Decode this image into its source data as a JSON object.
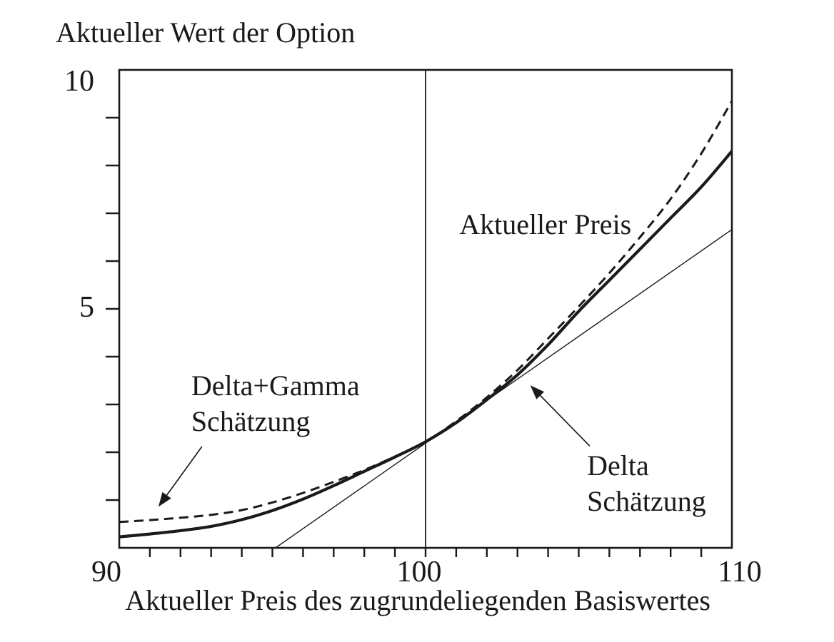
{
  "chart_data": {
    "type": "line",
    "title": "Aktueller Wert der Option",
    "xlabel": "Aktueller Preis des zugrundeliegenden Basiswertes",
    "ylabel": "Aktueller Wert der Option",
    "xlim": [
      90,
      110
    ],
    "ylim": [
      0,
      10
    ],
    "x_tick_labels": [
      "90",
      "100",
      "110"
    ],
    "x_tick_values": [
      90,
      100,
      110
    ],
    "y_tick_labels": [
      "10",
      "5"
    ],
    "y_tick_values": [
      10,
      5
    ],
    "x_minor_tick_step": 1,
    "y_minor_tick_step": 1,
    "grid": false,
    "legend": "none (inline annotations)",
    "reference_line_x": 100,
    "axis_color": "#1a1a1a",
    "background_color": "#ffffff",
    "series": [
      {
        "name": "Aktueller Preis",
        "style": "thick-solid",
        "points": [
          [
            90,
            0.23
          ],
          [
            91,
            0.29
          ],
          [
            92,
            0.36
          ],
          [
            93,
            0.45
          ],
          [
            94,
            0.59
          ],
          [
            95,
            0.78
          ],
          [
            96,
            1.02
          ],
          [
            97,
            1.3
          ],
          [
            98,
            1.6
          ],
          [
            99,
            1.9
          ],
          [
            100,
            2.22
          ],
          [
            101,
            2.62
          ],
          [
            102,
            3.1
          ],
          [
            103,
            3.62
          ],
          [
            104,
            4.25
          ],
          [
            105,
            4.95
          ],
          [
            106,
            5.6
          ],
          [
            107,
            6.25
          ],
          [
            108,
            6.9
          ],
          [
            109,
            7.55
          ],
          [
            110,
            8.3
          ]
        ]
      },
      {
        "name": "Delta Schätzung",
        "style": "thin-solid",
        "points": [
          [
            95.1,
            0
          ],
          [
            110,
            6.66
          ]
        ]
      },
      {
        "name": "Delta+Gamma Schätzung",
        "style": "dashed",
        "points": [
          [
            90,
            0.54
          ],
          [
            91,
            0.58
          ],
          [
            92,
            0.63
          ],
          [
            93,
            0.69
          ],
          [
            94,
            0.79
          ],
          [
            95,
            0.95
          ],
          [
            96,
            1.15
          ],
          [
            97,
            1.38
          ],
          [
            98,
            1.63
          ],
          [
            99,
            1.91
          ],
          [
            100,
            2.22
          ],
          [
            101,
            2.65
          ],
          [
            102,
            3.15
          ],
          [
            103,
            3.72
          ],
          [
            104,
            4.38
          ],
          [
            105,
            5.05
          ],
          [
            106,
            5.75
          ],
          [
            107,
            6.5
          ],
          [
            108,
            7.3
          ],
          [
            109,
            8.25
          ],
          [
            110,
            9.35
          ]
        ]
      }
    ],
    "annotations": [
      {
        "id": "aktueller-preis",
        "lines": [
          "Aktueller Preis"
        ],
        "x": 101.1,
        "y": 7.13
      },
      {
        "id": "delta-gamma",
        "lines": [
          "Delta+Gamma",
          "Schätzung"
        ],
        "x": 92.35,
        "y": 3.76,
        "arrow": {
          "from": [
            92.7,
            2.12
          ],
          "to": [
            91.28,
            0.86
          ]
        }
      },
      {
        "id": "delta",
        "lines": [
          "Delta",
          "Schätzung"
        ],
        "x": 105.27,
        "y": 2.09,
        "arrow": {
          "from": [
            105.36,
            2.13
          ],
          "to": [
            103.42,
            3.4
          ]
        }
      }
    ]
  }
}
